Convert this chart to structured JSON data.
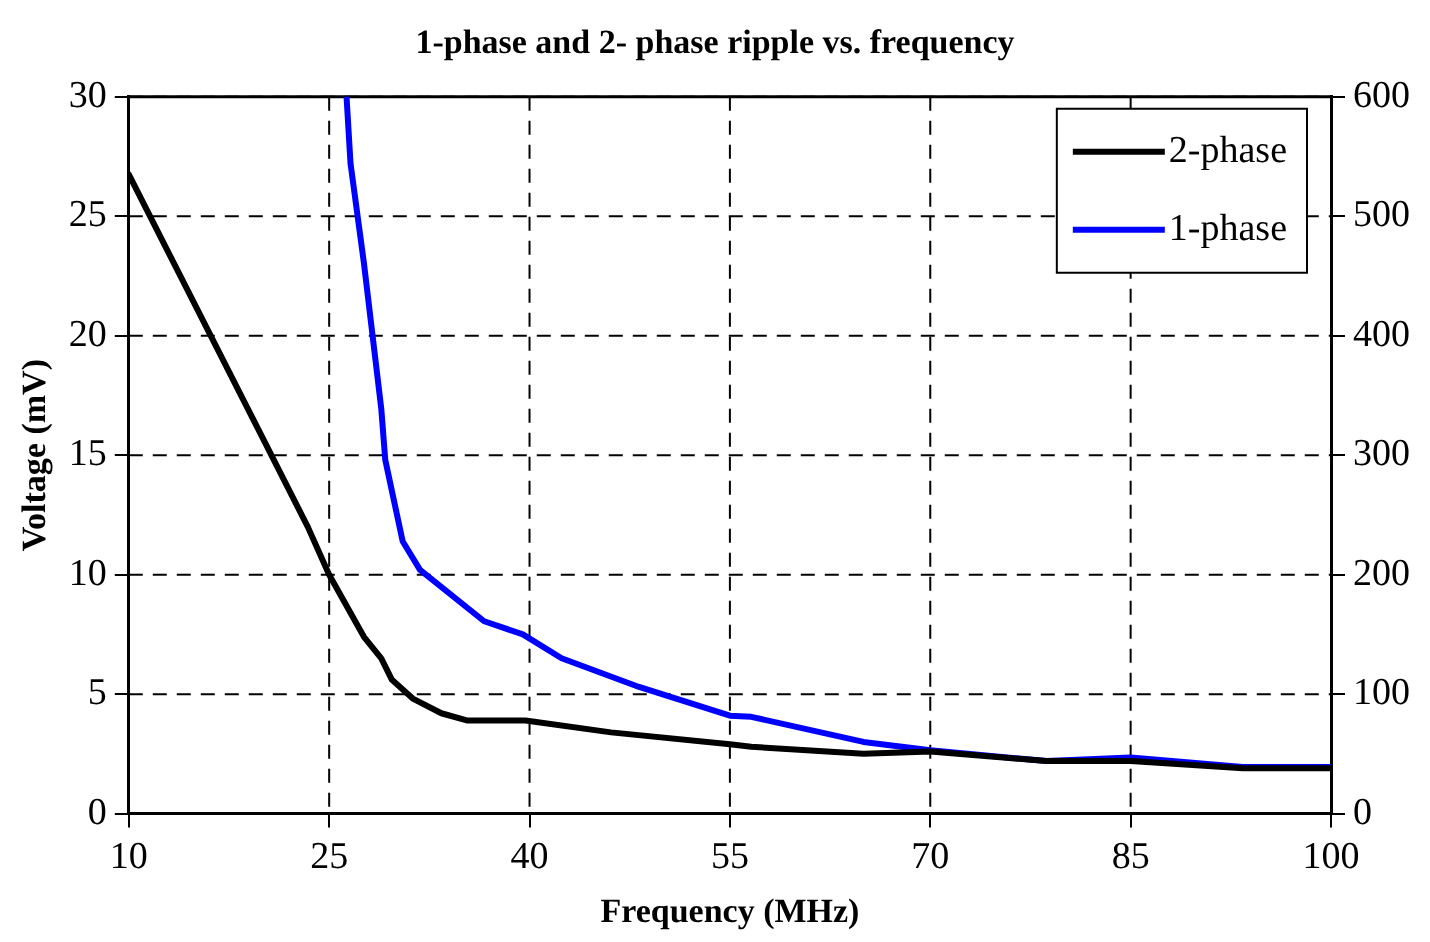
{
  "chart_data": {
    "type": "line",
    "title": "1-phase and 2- phase ripple vs. frequency",
    "xlabel": "Frequency (MHz)",
    "ylabel": "Voltage (mV)",
    "xlim": [
      10,
      100
    ],
    "xticks": [
      10,
      25,
      40,
      55,
      70,
      85,
      100
    ],
    "ylim": [
      0,
      30
    ],
    "yticks": [
      0,
      5,
      10,
      15,
      20,
      25,
      30
    ],
    "y2lim": [
      0,
      600
    ],
    "y2ticks": [
      0,
      100,
      200,
      300,
      400,
      500,
      600
    ],
    "grid": true,
    "legend": "top right",
    "line_style": "solid",
    "marker": "none",
    "series": [
      {
        "name": "2-phase",
        "color": "#000000",
        "x": [
          10,
          23.4,
          25,
          27.6,
          28.9,
          29.7,
          31.3,
          33.4,
          35.3,
          39.7,
          46.1,
          55,
          56.6,
          65,
          70,
          78.7,
          85,
          93.4,
          100
        ],
        "values": [
          26.75,
          12.0,
          10.0,
          7.4,
          6.5,
          5.6,
          4.8,
          4.2,
          3.9,
          3.9,
          3.4,
          2.9,
          2.8,
          2.5,
          2.6,
          2.2,
          2.2,
          1.9,
          1.9
        ]
      },
      {
        "name": "1-phase",
        "color": "#0000ff",
        "axis": "y2",
        "x": [
          26.3,
          26.6,
          27.6,
          28.9,
          29.2,
          30.5,
          31.8,
          36.6,
          39.5,
          42.4,
          48.2,
          55,
          56.6,
          65,
          70,
          78.7,
          85,
          93.4,
          100
        ],
        "values": [
          600,
          544,
          461,
          339,
          296,
          228,
          204,
          161,
          150,
          130,
          106,
          82,
          81,
          60,
          53,
          44,
          47,
          39,
          39
        ]
      }
    ]
  }
}
